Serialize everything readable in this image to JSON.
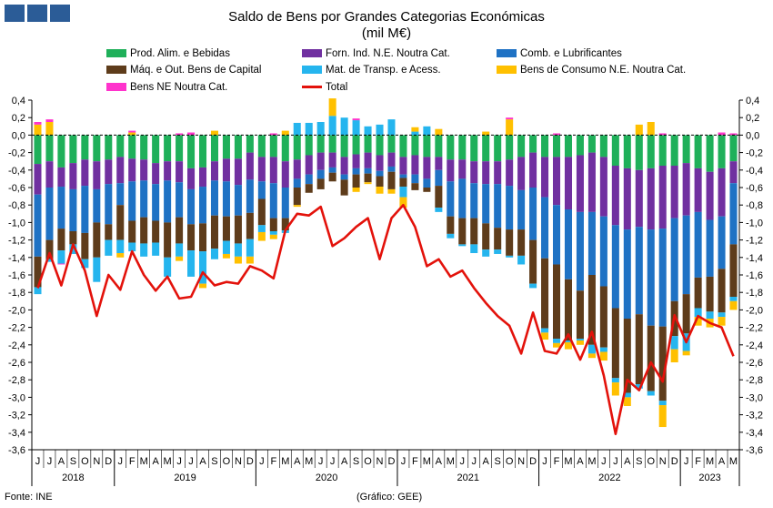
{
  "header": {
    "logo_boxes": 3
  },
  "footer": {
    "source": "Fonte: INE",
    "credit": "(Gráfico: GEE)"
  },
  "chart_data": {
    "type": "bar",
    "stacked": true,
    "title": "Saldo de Bens por Grandes Categorias Económicas",
    "subtitle": "(mil M€)",
    "ylim": [
      -3.6,
      0.4
    ],
    "yticks": [
      "0,4",
      "0,2",
      "0,0",
      "-0,2",
      "-0,4",
      "-0,6",
      "-0,8",
      "-1,0",
      "-1,2",
      "-1,4",
      "-1,6",
      "-1,8",
      "-2,0",
      "-2,2",
      "-2,4",
      "-2,6",
      "-2,8",
      "-3,0",
      "-3,2",
      "-3,4",
      "-3,6"
    ],
    "categories": [
      "J",
      "J",
      "A",
      "S",
      "O",
      "N",
      "D",
      "J",
      "F",
      "M",
      "A",
      "M",
      "J",
      "J",
      "A",
      "S",
      "O",
      "N",
      "D",
      "J",
      "F",
      "M",
      "A",
      "M",
      "J",
      "J",
      "A",
      "S",
      "O",
      "N",
      "D",
      "J",
      "F",
      "M",
      "A",
      "M",
      "J",
      "J",
      "A",
      "S",
      "O",
      "N",
      "D",
      "J",
      "F",
      "M",
      "A",
      "M",
      "J",
      "J",
      "A",
      "S",
      "O",
      "N",
      "D",
      "J",
      "F",
      "M",
      "A",
      "M"
    ],
    "years": [
      {
        "label": "2018",
        "start": 0,
        "count": 7
      },
      {
        "label": "2019",
        "start": 7,
        "count": 12
      },
      {
        "label": "2020",
        "start": 19,
        "count": 12
      },
      {
        "label": "2021",
        "start": 31,
        "count": 12
      },
      {
        "label": "2022",
        "start": 43,
        "count": 12
      },
      {
        "label": "2023",
        "start": 55,
        "count": 5
      }
    ],
    "series": [
      {
        "name": "Prod. Alim. e Bebidas",
        "color": "#1fb05a",
        "values": [
          -0.33,
          -0.3,
          -0.37,
          -0.32,
          -0.28,
          -0.3,
          -0.28,
          -0.25,
          -0.27,
          -0.28,
          -0.32,
          -0.3,
          -0.3,
          -0.38,
          -0.37,
          -0.3,
          -0.27,
          -0.27,
          -0.2,
          -0.25,
          -0.25,
          -0.3,
          -0.28,
          -0.23,
          -0.2,
          -0.2,
          -0.25,
          -0.22,
          -0.2,
          -0.23,
          -0.2,
          -0.25,
          -0.23,
          -0.25,
          -0.25,
          -0.28,
          -0.28,
          -0.3,
          -0.3,
          -0.3,
          -0.28,
          -0.25,
          -0.2,
          -0.25,
          -0.25,
          -0.25,
          -0.23,
          -0.2,
          -0.25,
          -0.35,
          -0.38,
          -0.4,
          -0.38,
          -0.35,
          -0.35,
          -0.32,
          -0.38,
          -0.42,
          -0.38,
          -0.3
        ]
      },
      {
        "name": "Forn. Ind. N.E. Noutra Cat.",
        "color": "#7030a0",
        "values": [
          -0.35,
          -0.3,
          -0.22,
          -0.3,
          -0.3,
          -0.32,
          -0.28,
          -0.3,
          -0.26,
          -0.24,
          -0.24,
          -0.22,
          -0.24,
          -0.24,
          -0.22,
          -0.22,
          -0.26,
          -0.3,
          -0.31,
          -0.28,
          -0.3,
          -0.3,
          -0.22,
          -0.22,
          -0.2,
          -0.17,
          -0.2,
          -0.16,
          -0.18,
          -0.18,
          -0.16,
          -0.2,
          -0.22,
          -0.25,
          -0.15,
          -0.25,
          -0.22,
          -0.25,
          -0.26,
          -0.26,
          -0.3,
          -0.38,
          -0.4,
          -0.46,
          -0.55,
          -0.6,
          -0.65,
          -0.68,
          -0.68,
          -0.68,
          -0.7,
          -0.65,
          -0.7,
          -0.72,
          -0.6,
          -0.6,
          -0.5,
          -0.55,
          -0.55,
          -0.25
        ]
      },
      {
        "name": "Comb. e Lubrificantes",
        "color": "#1f72c4",
        "values": [
          -0.71,
          -0.6,
          -0.48,
          -0.48,
          -0.54,
          -0.38,
          -0.46,
          -0.25,
          -0.45,
          -0.42,
          -0.42,
          -0.48,
          -0.4,
          -0.4,
          -0.42,
          -0.4,
          -0.4,
          -0.35,
          -0.38,
          -0.2,
          -0.4,
          -0.35,
          -0.1,
          -0.11,
          -0.1,
          -0.06,
          -0.06,
          -0.07,
          -0.06,
          -0.06,
          -0.06,
          -0.04,
          -0.1,
          -0.1,
          -0.18,
          -0.4,
          -0.45,
          -0.4,
          -0.45,
          -0.5,
          -0.5,
          -0.45,
          -0.6,
          -0.7,
          -0.68,
          -0.8,
          -0.9,
          -0.72,
          -0.8,
          -0.95,
          -1.02,
          -1.0,
          -1.1,
          -1.12,
          -0.95,
          -0.9,
          -0.75,
          -0.65,
          -0.6,
          -0.7
        ]
      },
      {
        "name": "Máq. e Out. Bens de Capital",
        "color": "#5e3c1b",
        "values": [
          -0.35,
          -0.22,
          -0.25,
          -0.15,
          -0.3,
          -0.4,
          -0.18,
          -0.4,
          -0.25,
          -0.3,
          -0.25,
          -0.4,
          -0.3,
          -0.3,
          -0.32,
          -0.38,
          -0.28,
          -0.32,
          -0.3,
          -0.3,
          -0.15,
          -0.14,
          -0.2,
          -0.1,
          -0.12,
          -0.1,
          -0.18,
          -0.15,
          -0.1,
          -0.12,
          -0.2,
          -0.1,
          -0.08,
          -0.05,
          -0.25,
          -0.2,
          -0.3,
          -0.3,
          -0.3,
          -0.25,
          -0.3,
          -0.3,
          -0.5,
          -0.8,
          -0.85,
          -0.7,
          -0.55,
          -0.8,
          -0.7,
          -0.8,
          -0.85,
          -0.8,
          -0.75,
          -0.85,
          -0.4,
          -0.45,
          -0.35,
          -0.4,
          -0.5,
          -0.6
        ]
      },
      {
        "name": "Mat. de Transp. e Acess.",
        "color": "#25b5ee",
        "values": [
          -0.08,
          -0.03,
          -0.15,
          -0.11,
          -0.1,
          -0.28,
          -0.18,
          -0.15,
          -0.1,
          -0.15,
          -0.15,
          -0.22,
          -0.15,
          -0.3,
          -0.37,
          -0.12,
          -0.15,
          -0.15,
          -0.2,
          -0.08,
          -0.04,
          -0.03,
          0.14,
          0.14,
          0.15,
          0.22,
          0.2,
          0.17,
          0.1,
          0.12,
          0.18,
          -0.12,
          0.04,
          0.1,
          -0.05,
          -0.05,
          -0.02,
          -0.1,
          -0.08,
          -0.05,
          -0.02,
          -0.1,
          -0.05,
          -0.05,
          -0.05,
          -0.02,
          -0.02,
          -0.1,
          -0.05,
          -0.05,
          -0.05,
          -0.05,
          -0.05,
          -0.05,
          -0.15,
          -0.2,
          -0.1,
          -0.08,
          -0.05,
          -0.05
        ]
      },
      {
        "name": "Bens de Consumo N.E. Noutra Cat.",
        "color": "#ffc000",
        "values": [
          0.12,
          0.15,
          0.0,
          0.0,
          0.0,
          0.0,
          0.0,
          -0.05,
          0.03,
          0.0,
          0.0,
          0.0,
          -0.05,
          0.0,
          -0.05,
          0.05,
          -0.05,
          -0.08,
          -0.08,
          -0.1,
          -0.05,
          0.05,
          -0.02,
          0.0,
          0.0,
          0.2,
          0.0,
          -0.05,
          -0.02,
          -0.08,
          -0.05,
          -0.12,
          0.05,
          0.0,
          0.07,
          0.0,
          0.0,
          0.0,
          0.04,
          0.0,
          0.18,
          0.0,
          0.0,
          -0.08,
          -0.05,
          -0.08,
          -0.05,
          -0.05,
          -0.1,
          -0.15,
          -0.1,
          0.12,
          0.15,
          -0.25,
          -0.15,
          -0.05,
          -0.1,
          -0.1,
          -0.1,
          -0.1
        ]
      },
      {
        "name": "Bens NE Noutra Cat.",
        "color": "#ff33cc",
        "values": [
          0.03,
          0.03,
          -0.01,
          0.0,
          0.0,
          0.0,
          0.0,
          0.0,
          0.02,
          0.0,
          0.0,
          0.0,
          0.02,
          0.03,
          0.0,
          0.0,
          0.0,
          0.0,
          0.0,
          0.0,
          0.02,
          0.0,
          0.0,
          0.0,
          0.0,
          0.0,
          0.0,
          0.02,
          0.0,
          0.0,
          0.0,
          0.0,
          0.0,
          0.0,
          0.0,
          0.0,
          0.0,
          0.0,
          0.0,
          0.0,
          0.02,
          0.0,
          0.0,
          0.0,
          0.02,
          0.0,
          0.0,
          0.0,
          0.0,
          0.0,
          0.0,
          0.0,
          0.0,
          0.02,
          0.0,
          0.0,
          0.0,
          0.0,
          0.03,
          0.02
        ]
      }
    ],
    "total": {
      "name": "Total",
      "color": "#e3120b",
      "values": [
        -1.75,
        -1.35,
        -1.72,
        -1.25,
        -1.55,
        -2.07,
        -1.6,
        -1.77,
        -1.33,
        -1.6,
        -1.78,
        -1.62,
        -1.87,
        -1.85,
        -1.57,
        -1.72,
        -1.68,
        -1.7,
        -1.5,
        -1.55,
        -1.64,
        -1.09,
        -0.9,
        -0.92,
        -0.82,
        -1.27,
        -1.18,
        -1.05,
        -0.95,
        -1.42,
        -0.95,
        -0.8,
        -1.05,
        -1.5,
        -1.42,
        -1.62,
        -1.55,
        -1.75,
        -1.92,
        -2.07,
        -2.18,
        -2.5,
        -2.03,
        -2.47,
        -2.5,
        -2.28,
        -2.57,
        -2.25,
        -2.75,
        -3.42,
        -2.8,
        -2.92,
        -2.6,
        -2.82,
        -2.06,
        -2.37,
        -2.07,
        -2.15,
        -2.2,
        -2.53
      ]
    }
  }
}
